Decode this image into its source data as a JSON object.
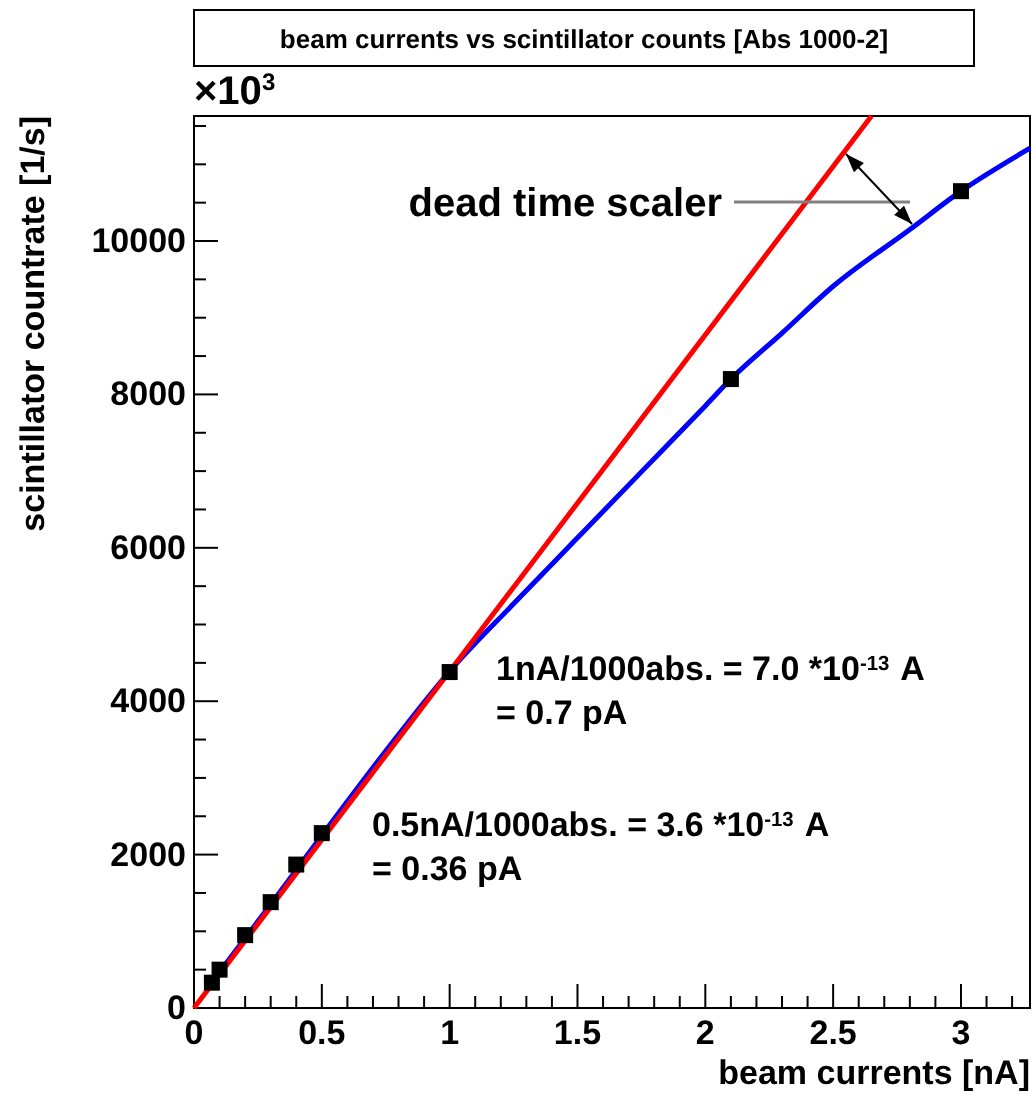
{
  "chart_data": {
    "type": "line",
    "title": "beam currents vs  scintillator counts [Abs 1000-2]",
    "xlabel": "beam currents [nA]",
    "ylabel": "scintillator countrate [1/s]",
    "xlim": [
      0,
      3.27
    ],
    "ylim": [
      0,
      11630
    ],
    "xticks": [
      0,
      {
        "value": 0.1,
        "label": null
      },
      {
        "value": 0.2,
        "label": null
      },
      {
        "value": 0.3,
        "label": null
      },
      {
        "value": 0.4,
        "label": null
      },
      0.5,
      {
        "value": 0.6,
        "label": null
      },
      {
        "value": 0.7,
        "label": null
      },
      {
        "value": 0.8,
        "label": null
      },
      {
        "value": 0.9,
        "label": null
      },
      1,
      {
        "value": 1.1,
        "label": null
      },
      {
        "value": 1.2,
        "label": null
      },
      {
        "value": 1.3,
        "label": null
      },
      {
        "value": 1.4,
        "label": null
      },
      1.5,
      {
        "value": 1.6,
        "label": null
      },
      {
        "value": 1.7,
        "label": null
      },
      {
        "value": 1.8,
        "label": null
      },
      {
        "value": 1.9,
        "label": null
      },
      2,
      {
        "value": 2.1,
        "label": null
      },
      {
        "value": 2.2,
        "label": null
      },
      {
        "value": 2.3,
        "label": null
      },
      {
        "value": 2.4,
        "label": null
      },
      2.5,
      {
        "value": 2.6,
        "label": null
      },
      {
        "value": 2.7,
        "label": null
      },
      {
        "value": 2.8,
        "label": null
      },
      {
        "value": 2.9,
        "label": null
      },
      3,
      {
        "value": 3.1,
        "label": null
      },
      {
        "value": 3.2,
        "label": null
      }
    ],
    "yticks": [
      0,
      {
        "value": 500,
        "label": null
      },
      {
        "value": 1000,
        "label": null
      },
      {
        "value": 1500,
        "label": null
      },
      2000,
      {
        "value": 2500,
        "label": null
      },
      {
        "value": 3000,
        "label": null
      },
      {
        "value": 3500,
        "label": null
      },
      4000,
      {
        "value": 4500,
        "label": null
      },
      {
        "value": 5000,
        "label": null
      },
      {
        "value": 5500,
        "label": null
      },
      6000,
      {
        "value": 6500,
        "label": null
      },
      {
        "value": 7000,
        "label": null
      },
      {
        "value": 7500,
        "label": null
      },
      8000,
      {
        "value": 8500,
        "label": null
      },
      {
        "value": 9000,
        "label": null
      },
      {
        "value": 9500,
        "label": null
      },
      10000,
      {
        "value": 10500,
        "label": null
      },
      {
        "value": 11000,
        "label": null
      },
      {
        "value": 11500,
        "label": null
      }
    ],
    "grid": false,
    "series": [
      {
        "color": "#0000ff",
        "x": [
          0.05,
          0.3,
          0.5,
          0.75,
          1,
          1.25,
          1.5,
          1.75,
          2,
          2.1,
          2.3,
          2.5,
          2.8,
          3,
          3.27
        ],
        "values": [
          250,
          1350,
          2250,
          3350,
          4390,
          5270,
          6130,
          6990,
          7850,
          8200,
          8800,
          9410,
          10150,
          10650,
          11210
        ]
      },
      {
        "color": "#ff0000",
        "x": [
          0,
          2.65
        ],
        "values": [
          0,
          11630
        ]
      },
      {
        "type": "scatter",
        "color": "#000000",
        "marker": "square",
        "x": [
          0.07,
          0.1,
          0.2,
          0.3,
          0.4,
          0.5,
          1,
          2.1,
          3
        ],
        "values": [
          330,
          500,
          950,
          1380,
          1870,
          2280,
          4380,
          8200,
          10650
        ]
      }
    ],
    "annotations": [
      "×10$^{3}$",
      "dead time scaler",
      "1nA/1000abs. =  7.0 *10$^{-13}$ A",
      "= 0.7 pA",
      "0.5nA/1000abs. =  3.6 *10$^{-13}$ A",
      "= 0.36 pA"
    ]
  }
}
